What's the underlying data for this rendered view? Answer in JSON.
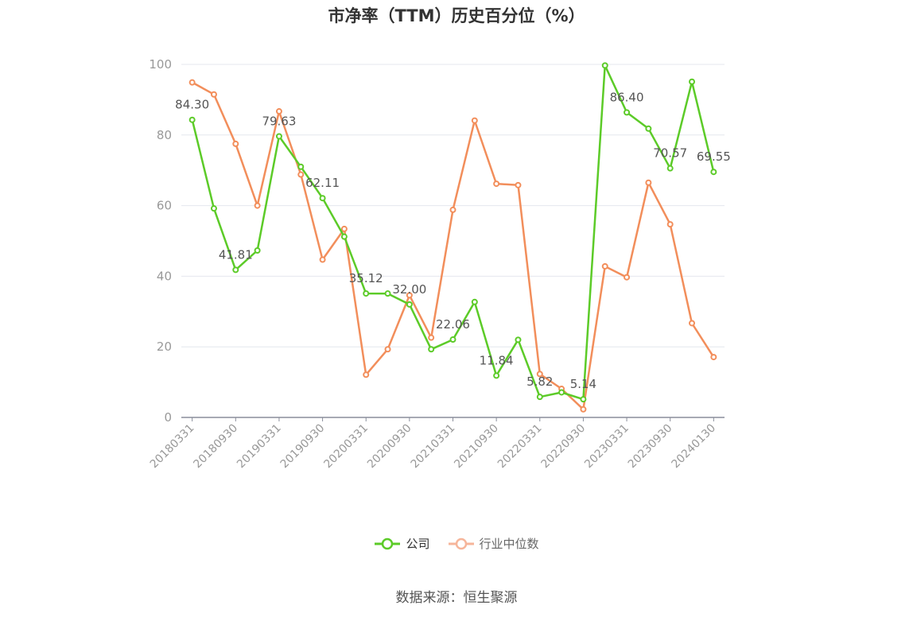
{
  "title": "市净率（TTM）历史百分位（%）",
  "source": "数据来源：恒生聚源",
  "colors": {
    "company": "#5ccb28",
    "industry": "#f28e5b",
    "industry_legend": "#f6b59a",
    "axis": "#8a8e9b",
    "grid": "#e4e7ee",
    "tick_text": "#999999",
    "label_text": "#555555"
  },
  "chart_data": {
    "type": "line",
    "title": "市净率（TTM）历史百分位（%）",
    "xlabel": "",
    "ylabel": "",
    "ylim": [
      0,
      100
    ],
    "yticks": [
      0,
      20,
      40,
      60,
      80,
      100
    ],
    "grid": true,
    "legend_position": "bottom",
    "x": [
      "20180331",
      "20180630",
      "20180930",
      "20181231",
      "20190331",
      "20190630",
      "20190930",
      "20191231",
      "20200331",
      "20200630",
      "20200930",
      "20201231",
      "20210331",
      "20210630",
      "20210930",
      "20211231",
      "20220331",
      "20220630",
      "20220930",
      "20221231",
      "20230331",
      "20230630",
      "20230930",
      "20231231",
      "20240130"
    ],
    "xtick_labels": [
      "20180331",
      "20180930",
      "20190331",
      "20190930",
      "20200331",
      "20200930",
      "20210331",
      "20210930",
      "20220331",
      "20220930",
      "20230331",
      "20230930",
      "20240130"
    ],
    "series": [
      {
        "name": "公司",
        "values": [
          84.3,
          59.2,
          41.81,
          47.3,
          79.63,
          71.0,
          62.11,
          51.2,
          35.12,
          35.1,
          32.0,
          19.3,
          22.06,
          32.7,
          11.84,
          22.0,
          5.82,
          7.1,
          5.14,
          99.7,
          86.4,
          81.8,
          70.57,
          95.1,
          69.55
        ],
        "labels": [
          "84.30",
          null,
          "41.81",
          null,
          "79.63",
          null,
          "62.11",
          null,
          "35.12",
          null,
          "32.00",
          null,
          "22.06",
          null,
          "11.84",
          null,
          "5.82",
          null,
          "5.14",
          null,
          "86.40",
          null,
          "70.57",
          null,
          "69.55"
        ]
      },
      {
        "name": "行业中位数",
        "values": [
          94.9,
          91.5,
          77.5,
          60.0,
          86.7,
          68.8,
          44.7,
          53.4,
          12.1,
          19.3,
          34.6,
          22.6,
          58.8,
          84.1,
          66.2,
          65.8,
          12.3,
          8.1,
          2.3,
          42.8,
          39.7,
          66.5,
          54.7,
          26.7,
          17.1
        ]
      }
    ]
  }
}
